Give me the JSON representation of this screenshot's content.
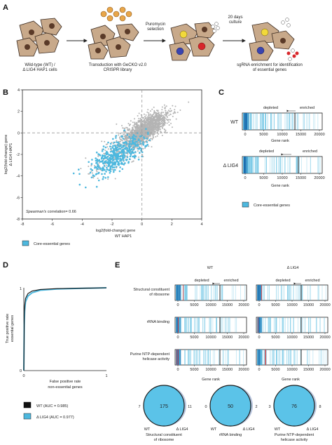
{
  "colors": {
    "core_essential": "#4db8de",
    "non_essential_points": "#b4b4b4",
    "cell_body": "#c8a98a",
    "cell_nucleus": "#5a3a28",
    "venn_fill": "#5bc3e8",
    "venn_outline": "#1a1a1a",
    "rank_line_dark": "#1d6fb0",
    "rank_line_red": "#d33"
  },
  "panel_a": {
    "letter": "A",
    "steps": [
      {
        "caption_line1": "Wild-type (WT) /",
        "caption_line2": "Δ LIG4 HAP1 cells"
      },
      {
        "caption_line1": "Transduction with GeCKO v2.0",
        "caption_line2": "CRISPR library"
      },
      {
        "caption_line1": "sgRNA enrichment for identification",
        "caption_line2": "of essential genes"
      }
    ],
    "arrow_labels": [
      {
        "line1": "Puromycin",
        "line2": "selection"
      },
      {
        "line1": "20 days",
        "line2": "culture"
      }
    ]
  },
  "panel_b": {
    "letter": "B",
    "ylabel_line1": "log2(fold-change) gene",
    "ylabel_line2": "Δ LIG4 HAP1",
    "xlabel_line1": "log2(fold-change) gene",
    "xlabel_line2": "WT HAP1",
    "correlation_italic": "Spearman's",
    "correlation_rest": " correlation= 0.66",
    "legend_label": "Core-essential genes",
    "chart_data": {
      "type": "scatter",
      "xlim": [
        -8,
        4
      ],
      "ylim": [
        -8,
        4
      ],
      "xticks": [
        "-8",
        "-6",
        "-4",
        "-2",
        "0",
        "2",
        "4"
      ],
      "yticks": [
        "4",
        "2",
        "0",
        "-2",
        "-4",
        "-6",
        "-8"
      ],
      "series": [
        {
          "name": "Core-essential genes"
        }
      ]
    }
  },
  "panel_c": {
    "letter": "C",
    "rows": [
      {
        "label": "WT"
      },
      {
        "label": "Δ LIG4"
      }
    ],
    "depleted": "depleted",
    "enriched": "enriched",
    "xticks": [
      "0",
      "5000",
      "10000",
      "15000",
      "20000"
    ],
    "xlabel": "Gene rank",
    "legend_label": "Core-essential genes"
  },
  "panel_d": {
    "letter": "D",
    "ylabel_line1": "True positive rate",
    "ylabel_line2": "essential genes",
    "xlabel_line1": "False positive rate",
    "xlabel_line2": "non-essential genes",
    "xticks": [
      "0",
      "1"
    ],
    "yticks": [
      "0",
      "1"
    ],
    "legend": [
      {
        "label": "WT (AUC = 0.985)",
        "color": "#111111"
      },
      {
        "label": "Δ LIG4 (AUC = 0.977)",
        "color": "#4db8de"
      }
    ],
    "chart_data": {
      "type": "line",
      "xlim": [
        0,
        1
      ],
      "ylim": [
        0,
        1
      ],
      "series": [
        {
          "name": "WT (AUC = 0.985)",
          "x": [
            0,
            0.005,
            0.01,
            0.02,
            0.05,
            0.1,
            0.2,
            0.4,
            0.7,
            1
          ],
          "y": [
            0,
            0.6,
            0.78,
            0.87,
            0.93,
            0.96,
            0.98,
            0.99,
            0.995,
            1
          ]
        },
        {
          "name": "Δ LIG4 (AUC = 0.977)",
          "x": [
            0,
            0.005,
            0.01,
            0.02,
            0.05,
            0.1,
            0.2,
            0.4,
            0.7,
            1
          ],
          "y": [
            0,
            0.55,
            0.72,
            0.83,
            0.9,
            0.94,
            0.97,
            0.985,
            0.993,
            1
          ]
        }
      ]
    }
  },
  "panel_e": {
    "letter": "E",
    "col_headers": [
      "WT",
      "Δ LIG4"
    ],
    "depleted": "depleted",
    "enriched": "enriched",
    "xticks": [
      "0",
      "5000",
      "10000",
      "15000",
      "20000"
    ],
    "xlabel": "Gene rank",
    "rows": [
      {
        "label_line1": "Structural constituent",
        "label_line2": "of ribosome"
      },
      {
        "label_line1": "rRNA binding",
        "label_line2": ""
      },
      {
        "label_line1": "Purine NTP-dependent",
        "label_line2": "helicase activity"
      }
    ],
    "venns": [
      {
        "left": "7",
        "center": "175",
        "right": "11",
        "label_left": "WT",
        "label_right": "Δ LIG4",
        "title_line1": "Structural constituent",
        "title_line2": "of ribosome"
      },
      {
        "left": "0",
        "center": "50",
        "right": "2",
        "label_left": "WT",
        "label_right": "Δ LIG4",
        "title_line1": "rRNA binding",
        "title_line2": ""
      },
      {
        "left": "3",
        "center": "76",
        "right": "8",
        "label_left": "WT",
        "label_right": "Δ LIG4",
        "title_line1": "Purine NTP-dependent",
        "title_line2": "helicase activity"
      }
    ]
  }
}
